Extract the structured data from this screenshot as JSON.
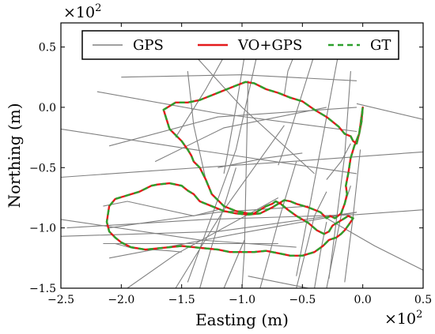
{
  "chart_data": {
    "type": "line",
    "xlabel": "Easting (m)",
    "ylabel": "Northing (m)",
    "x_multiplier": "×10",
    "x_multiplier_exp": "2",
    "y_multiplier": "×10",
    "y_multiplier_exp": "2",
    "xlim": [
      -2.5,
      0.5
    ],
    "ylim": [
      -1.5,
      0.7
    ],
    "xticks": [
      "−2.5",
      "−2.0",
      "−1.5",
      "−1.0",
      "−0.5",
      "0.0",
      "0.5"
    ],
    "xtick_values": [
      -2.5,
      -2.0,
      -1.5,
      -1.0,
      -0.5,
      0.0,
      0.5
    ],
    "yticks": [
      "−1.5",
      "−1.0",
      "−0.5",
      "0.0",
      "0.5"
    ],
    "ytick_values": [
      -1.5,
      -1.0,
      -0.5,
      0.0,
      0.5
    ],
    "legend_position": "top",
    "series": [
      {
        "name": "GPS",
        "color": "#808080",
        "style": "solid",
        "segments": [
          [
            [
              -2.45,
              -1.0
            ],
            [
              -1.3,
              -0.93
            ],
            [
              -0.05,
              -0.89
            ],
            [
              0.5,
              -0.85
            ]
          ],
          [
            [
              -2.5,
              -0.58
            ],
            [
              -1.8,
              -0.53
            ],
            [
              -0.6,
              -0.45
            ],
            [
              0.5,
              -0.37
            ]
          ],
          [
            [
              -2.5,
              -0.18
            ],
            [
              -1.4,
              -0.35
            ],
            [
              -0.05,
              -0.55
            ]
          ],
          [
            [
              -2.5,
              -1.07
            ],
            [
              -1.2,
              -1.03
            ],
            [
              -0.05,
              -0.87
            ]
          ],
          [
            [
              -2.5,
              -0.93
            ],
            [
              -1.35,
              -1.1
            ],
            [
              -0.55,
              -1.16
            ]
          ],
          [
            [
              -2.1,
              -1.0
            ],
            [
              -1.2,
              -0.87
            ],
            [
              -0.45,
              -0.82
            ]
          ],
          [
            [
              -2.15,
              -1.13
            ],
            [
              -0.7,
              -1.13
            ]
          ],
          [
            [
              -2.2,
              0.13
            ],
            [
              -1.2,
              -0.05
            ],
            [
              -0.05,
              -0.2
            ]
          ],
          [
            [
              -2.0,
              0.25
            ],
            [
              -1.0,
              0.27
            ],
            [
              -0.05,
              0.22
            ]
          ],
          [
            [
              -2.1,
              -0.32
            ],
            [
              -1.2,
              -0.08
            ],
            [
              -0.05,
              0.0
            ]
          ],
          [
            [
              -2.1,
              -1.25
            ],
            [
              -1.05,
              -1.05
            ],
            [
              -0.05,
              -0.87
            ]
          ],
          [
            [
              -0.05,
              0.03
            ],
            [
              0.5,
              -0.1
            ]
          ],
          [
            [
              -1.72,
              -0.45
            ],
            [
              -1.15,
              -0.17
            ],
            [
              -0.3,
              0.0
            ]
          ],
          [
            [
              -1.45,
              -1.45
            ],
            [
              -1.25,
              -0.9
            ],
            [
              -1.05,
              -0.35
            ],
            [
              -0.85,
              0.55
            ]
          ],
          [
            [
              -1.15,
              -1.5
            ],
            [
              -0.98,
              -1.1
            ]
          ],
          [
            [
              -1.95,
              -1.5
            ],
            [
              -1.55,
              -1.22
            ],
            [
              -0.7,
              -0.75
            ]
          ],
          [
            [
              -1.55,
              -1.5
            ],
            [
              -1.15,
              -0.85
            ],
            [
              -0.65,
              -0.15
            ]
          ],
          [
            [
              -1.35,
              -1.5
            ],
            [
              -1.25,
              -1.15
            ],
            [
              -1.05,
              -0.5
            ]
          ],
          [
            [
              -1.0,
              -1.5
            ],
            [
              -0.98,
              -1.18
            ],
            [
              -0.95,
              0.22
            ]
          ],
          [
            [
              -0.85,
              -1.5
            ],
            [
              -0.7,
              -0.95
            ],
            [
              -0.55,
              -0.45
            ]
          ],
          [
            [
              -0.55,
              -1.5
            ],
            [
              -0.4,
              -0.9
            ],
            [
              -0.3,
              -0.7
            ]
          ],
          [
            [
              -0.3,
              -1.5
            ],
            [
              -0.18,
              -0.9
            ],
            [
              -0.1,
              -0.65
            ]
          ],
          [
            [
              -0.35,
              0.6
            ],
            [
              -0.6,
              -0.2
            ],
            [
              -0.7,
              -0.48
            ]
          ],
          [
            [
              -0.2,
              0.45
            ],
            [
              -0.35,
              -0.35
            ],
            [
              -0.55,
              -1.4
            ]
          ],
          [
            [
              -0.1,
              0.3
            ],
            [
              -0.15,
              -0.4
            ],
            [
              -0.28,
              -1.42
            ]
          ],
          [
            [
              -0.02,
              -0.35
            ],
            [
              -0.08,
              -0.9
            ],
            [
              -0.15,
              -1.45
            ]
          ],
          [
            [
              -0.95,
              0.6
            ],
            [
              -1.05,
              0.0
            ],
            [
              -1.15,
              -0.55
            ]
          ],
          [
            [
              -1.45,
              0.3
            ],
            [
              -1.4,
              -0.15
            ],
            [
              -1.3,
              -0.6
            ]
          ],
          [
            [
              -1.5,
              0.55
            ],
            [
              -1.0,
              0.0
            ],
            [
              -0.4,
              -0.55
            ]
          ],
          [
            [
              -1.05,
              0.6
            ],
            [
              -1.3,
              0.15
            ],
            [
              -1.55,
              -0.25
            ]
          ],
          [
            [
              -0.5,
              0.6
            ],
            [
              -0.62,
              0.3
            ],
            [
              -0.65,
              0.1
            ]
          ],
          [
            [
              -0.4,
              -1.5
            ],
            [
              -0.35,
              -1.2
            ],
            [
              -0.3,
              -0.95
            ]
          ],
          [
            [
              -0.95,
              -1.4
            ],
            [
              -0.7,
              -1.45
            ],
            [
              -0.45,
              -1.5
            ]
          ],
          [
            [
              -0.3,
              -0.92
            ],
            [
              0.1,
              -1.15
            ],
            [
              0.5,
              -1.35
            ]
          ],
          [
            [
              -0.3,
              -0.6
            ],
            [
              -0.18,
              -0.45
            ],
            [
              -0.1,
              -0.3
            ]
          ],
          [
            [
              -1.2,
              -0.5
            ],
            [
              -0.8,
              -0.42
            ],
            [
              -0.5,
              -0.38
            ]
          ],
          [
            [
              -2.15,
              -0.82
            ],
            [
              -1.95,
              -0.78
            ],
            [
              -1.4,
              -0.9
            ],
            [
              -1.2,
              -0.85
            ]
          ],
          [
            [
              -2.05,
              -1.13
            ],
            [
              -1.9,
              -1.17
            ],
            [
              -1.6,
              -1.19
            ],
            [
              -1.5,
              -1.2
            ]
          ]
        ]
      },
      {
        "name": "VO+GPS",
        "color": "#e41a1c",
        "style": "solid",
        "x": [
          -1.6,
          -1.65,
          -1.55,
          -1.45,
          -1.35,
          -1.25,
          -1.15,
          -1.05,
          -0.97,
          -0.9,
          -0.8,
          -0.7,
          -0.6,
          -0.5,
          -0.4,
          -0.3,
          -0.2,
          -0.15,
          -0.1,
          -0.08,
          -0.05,
          -0.03,
          -0.01,
          0.0,
          -0.03,
          -0.07,
          -0.1,
          -0.12,
          -0.14,
          -0.13,
          -0.15,
          -0.18,
          -0.23,
          -0.27,
          -0.3,
          -0.35,
          -0.4,
          -0.45,
          -0.55,
          -0.6,
          -0.65,
          -0.7,
          -0.75,
          -0.85,
          -0.95,
          -1.05,
          -1.15,
          -1.25,
          -1.35,
          -1.4,
          -1.45,
          -1.5,
          -1.6,
          -1.7,
          -1.75,
          -1.85,
          -1.95,
          -2.05,
          -2.1,
          -2.12,
          -2.1,
          -2.05,
          -2.0,
          -1.92,
          -1.8,
          -1.7,
          -1.6,
          -1.5,
          -1.4,
          -1.3,
          -1.2,
          -1.1,
          -1.0,
          -0.9,
          -0.8,
          -0.7,
          -0.6,
          -0.5,
          -0.4,
          -0.33,
          -0.28,
          -0.22,
          -0.18,
          -0.15,
          -0.12,
          -0.1,
          -0.08,
          -0.12,
          -0.15,
          -0.2,
          -0.25,
          -0.28,
          -0.32,
          -0.38,
          -0.45,
          -0.55,
          -0.62,
          -0.68,
          -0.72,
          -0.75,
          -0.8,
          -0.85,
          -0.9,
          -0.95,
          -1.05,
          -1.15,
          -1.25,
          -1.3,
          -1.35,
          -1.4,
          -1.42,
          -1.45,
          -1.5,
          -1.55,
          -1.6
        ],
        "y": [
          -0.18,
          -0.02,
          0.04,
          0.04,
          0.06,
          0.1,
          0.14,
          0.18,
          0.21,
          0.2,
          0.15,
          0.12,
          0.08,
          0.05,
          -0.02,
          -0.08,
          -0.16,
          -0.22,
          -0.24,
          -0.28,
          -0.3,
          -0.22,
          -0.12,
          0.0,
          -0.22,
          -0.32,
          -0.42,
          -0.55,
          -0.65,
          -0.72,
          -0.8,
          -0.88,
          -0.92,
          -0.9,
          -0.92,
          -0.87,
          -0.85,
          -0.83,
          -0.8,
          -0.78,
          -0.77,
          -0.8,
          -0.83,
          -0.88,
          -0.89,
          -0.88,
          -0.86,
          -0.82,
          -0.78,
          -0.72,
          -0.69,
          -0.65,
          -0.63,
          -0.64,
          -0.65,
          -0.7,
          -0.73,
          -0.76,
          -0.82,
          -0.95,
          -1.03,
          -1.08,
          -1.12,
          -1.16,
          -1.18,
          -1.17,
          -1.16,
          -1.15,
          -1.16,
          -1.17,
          -1.18,
          -1.2,
          -1.2,
          -1.2,
          -1.19,
          -1.21,
          -1.23,
          -1.23,
          -1.2,
          -1.15,
          -1.1,
          -1.08,
          -1.05,
          -1.02,
          -0.98,
          -0.95,
          -0.92,
          -0.9,
          -0.92,
          -0.95,
          -0.98,
          -1.03,
          -1.05,
          -1.02,
          -0.96,
          -0.9,
          -0.85,
          -0.8,
          -0.78,
          -0.8,
          -0.82,
          -0.85,
          -0.88,
          -0.88,
          -0.86,
          -0.82,
          -0.72,
          -0.6,
          -0.5,
          -0.45,
          -0.4,
          -0.35,
          -0.28,
          -0.23,
          -0.18
        ]
      },
      {
        "name": "GT",
        "color": "#2ca02c",
        "style": "dashed",
        "same_as": "VO+GPS"
      }
    ]
  }
}
